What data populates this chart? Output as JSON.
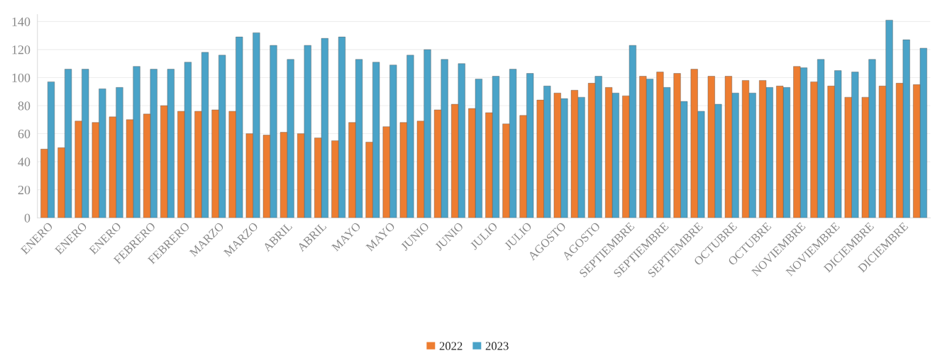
{
  "chart_data": {
    "type": "bar",
    "categories": [
      "ENERO",
      null,
      "ENERO",
      null,
      "ENERO",
      null,
      "FEBRERO",
      null,
      "FEBRERO",
      null,
      "MARZO",
      null,
      "MARZO",
      null,
      "ABRIL",
      null,
      "ABRIL",
      null,
      "MAYO",
      null,
      "MAYO",
      null,
      "JUNIO",
      null,
      "JUNIO",
      null,
      "JULIO",
      null,
      "JULIO",
      null,
      "AGOSTO",
      null,
      "AGOSTO",
      null,
      "SEPTIEMBRE",
      null,
      "SEPTIEMBRE",
      null,
      "SEPTIEMBRE",
      null,
      "OCTUBRE",
      null,
      "OCTUBRE",
      null,
      "NOVIEMBRE",
      null,
      "NOVIEMBRE",
      null,
      "DICIEMBRE",
      null,
      "DICIEMBRE",
      null
    ],
    "series": [
      {
        "name": "2022",
        "color": "#ed7d31",
        "values": [
          49,
          50,
          69,
          68,
          72,
          70,
          74,
          80,
          76,
          76,
          77,
          76,
          60,
          59,
          61,
          60,
          57,
          55,
          68,
          54,
          65,
          68,
          69,
          77,
          81,
          78,
          75,
          67,
          73,
          84,
          89,
          91,
          96,
          93,
          87,
          101,
          104,
          103,
          106,
          101,
          101,
          98,
          98,
          94,
          108,
          97,
          94,
          86,
          86,
          94,
          96,
          95
        ]
      },
      {
        "name": "2023",
        "color": "#4aa3c8",
        "values": [
          97,
          106,
          106,
          92,
          93,
          108,
          106,
          106,
          111,
          118,
          116,
          129,
          132,
          123,
          113,
          123,
          128,
          129,
          113,
          111,
          109,
          116,
          120,
          113,
          110,
          99,
          101,
          106,
          103,
          94,
          85,
          86,
          101,
          89,
          123,
          99,
          93,
          83,
          76,
          81,
          89,
          89,
          93,
          93,
          107,
          113,
          105,
          104,
          113,
          141,
          127,
          121
        ]
      }
    ],
    "ylim": [
      0,
      145
    ],
    "yticks": [
      0,
      20,
      40,
      60,
      80,
      100,
      120,
      140
    ],
    "grid": "y",
    "legend": "bottom"
  }
}
